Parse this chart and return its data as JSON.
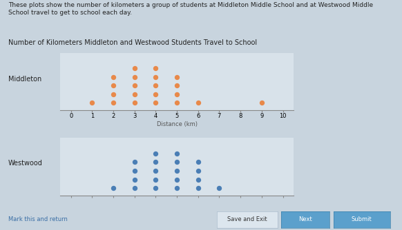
{
  "title": "Number of Kilometers Middleton and Westwood Students Travel to School",
  "intro_text": "These plots show the number of kilometers a group of students at Middleton Middle School and at Westwood Middle\nSchool travel to get to school each day.",
  "middleton_label": "Middleton",
  "westwood_label": "Westwood",
  "xlabel": "Distance (km)",
  "xmin": 0,
  "xmax": 10,
  "xticks": [
    0,
    1,
    2,
    3,
    4,
    5,
    6,
    7,
    8,
    9,
    10
  ],
  "middleton_dots": {
    "1": 1,
    "2": 4,
    "3": 5,
    "4": 5,
    "5": 4,
    "6": 1,
    "9": 1
  },
  "westwood_dots": {
    "2": 1,
    "3": 4,
    "4": 5,
    "5": 5,
    "6": 4,
    "7": 1
  },
  "dot_color_middleton": "#E8894A",
  "dot_color_westwood": "#4A7EB5",
  "dot_size": 28,
  "bg_color": "#c8d4de",
  "panel_bg": "#d8e2ea",
  "label_fontsize": 7,
  "title_fontsize": 7,
  "axis_fontsize": 6,
  "intro_fontsize": 6.5,
  "button_bar_color": "#b0c0cc",
  "btn_save_color": "#dce6ee",
  "btn_next_color": "#5ba0cc",
  "btn_submit_color": "#5ba0cc"
}
